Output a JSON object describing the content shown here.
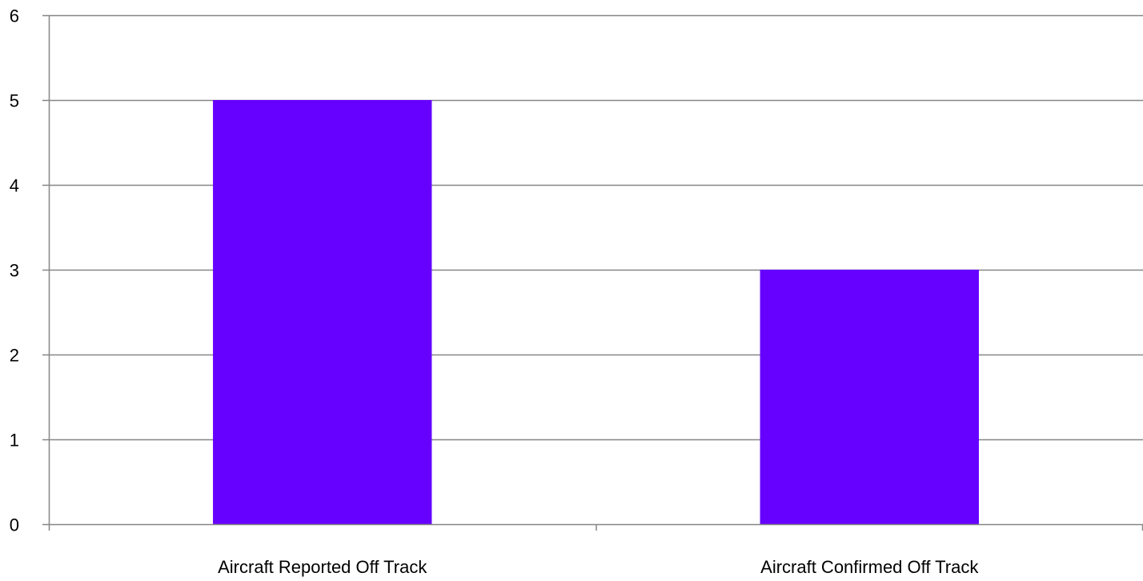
{
  "chart_data": {
    "type": "bar",
    "categories": [
      "Aircraft Reported Off Track",
      "Aircraft Confirmed Off Track"
    ],
    "values": [
      5,
      3
    ],
    "title": "",
    "xlabel": "",
    "ylabel": "",
    "ylim": [
      0,
      6
    ],
    "yticks": [
      0,
      1,
      2,
      3,
      4,
      5,
      6
    ],
    "grid": true,
    "legend": "none",
    "bar_color": "#6600FF",
    "gridline_color": "#868686",
    "axis_color": "#868686"
  }
}
